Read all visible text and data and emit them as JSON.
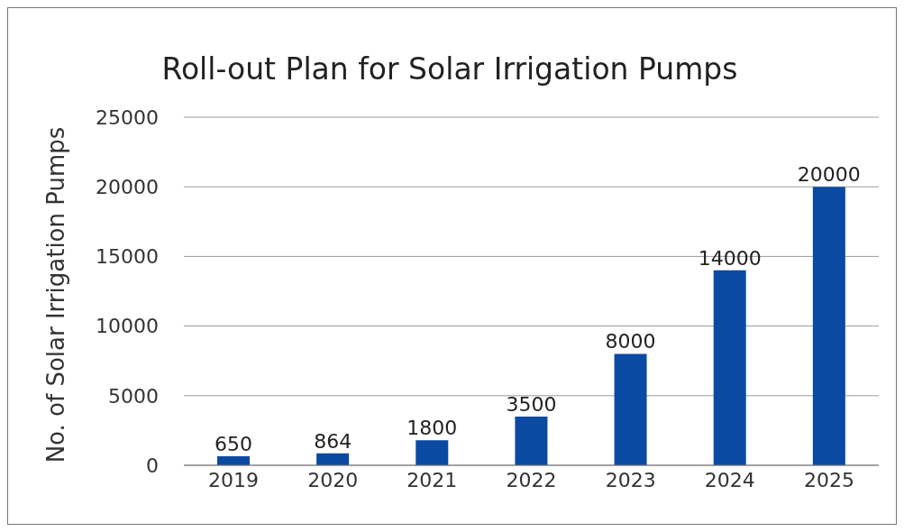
{
  "chart_data": {
    "type": "bar",
    "title": "Roll-out Plan for Solar Irrigation Pumps",
    "ylabel": "No. of Solar Irrigation Pumps",
    "categories": [
      "2019",
      "2020",
      "2021",
      "2022",
      "2023",
      "2024",
      "2025"
    ],
    "values": [
      650,
      864,
      1800,
      3500,
      8000,
      14000,
      20000
    ],
    "color": "#0b4aa2",
    "ylim": [
      0,
      25000
    ],
    "yticks": [
      0,
      5000,
      10000,
      15000,
      20000,
      25000
    ],
    "grid": "y",
    "data_labels": true
  }
}
